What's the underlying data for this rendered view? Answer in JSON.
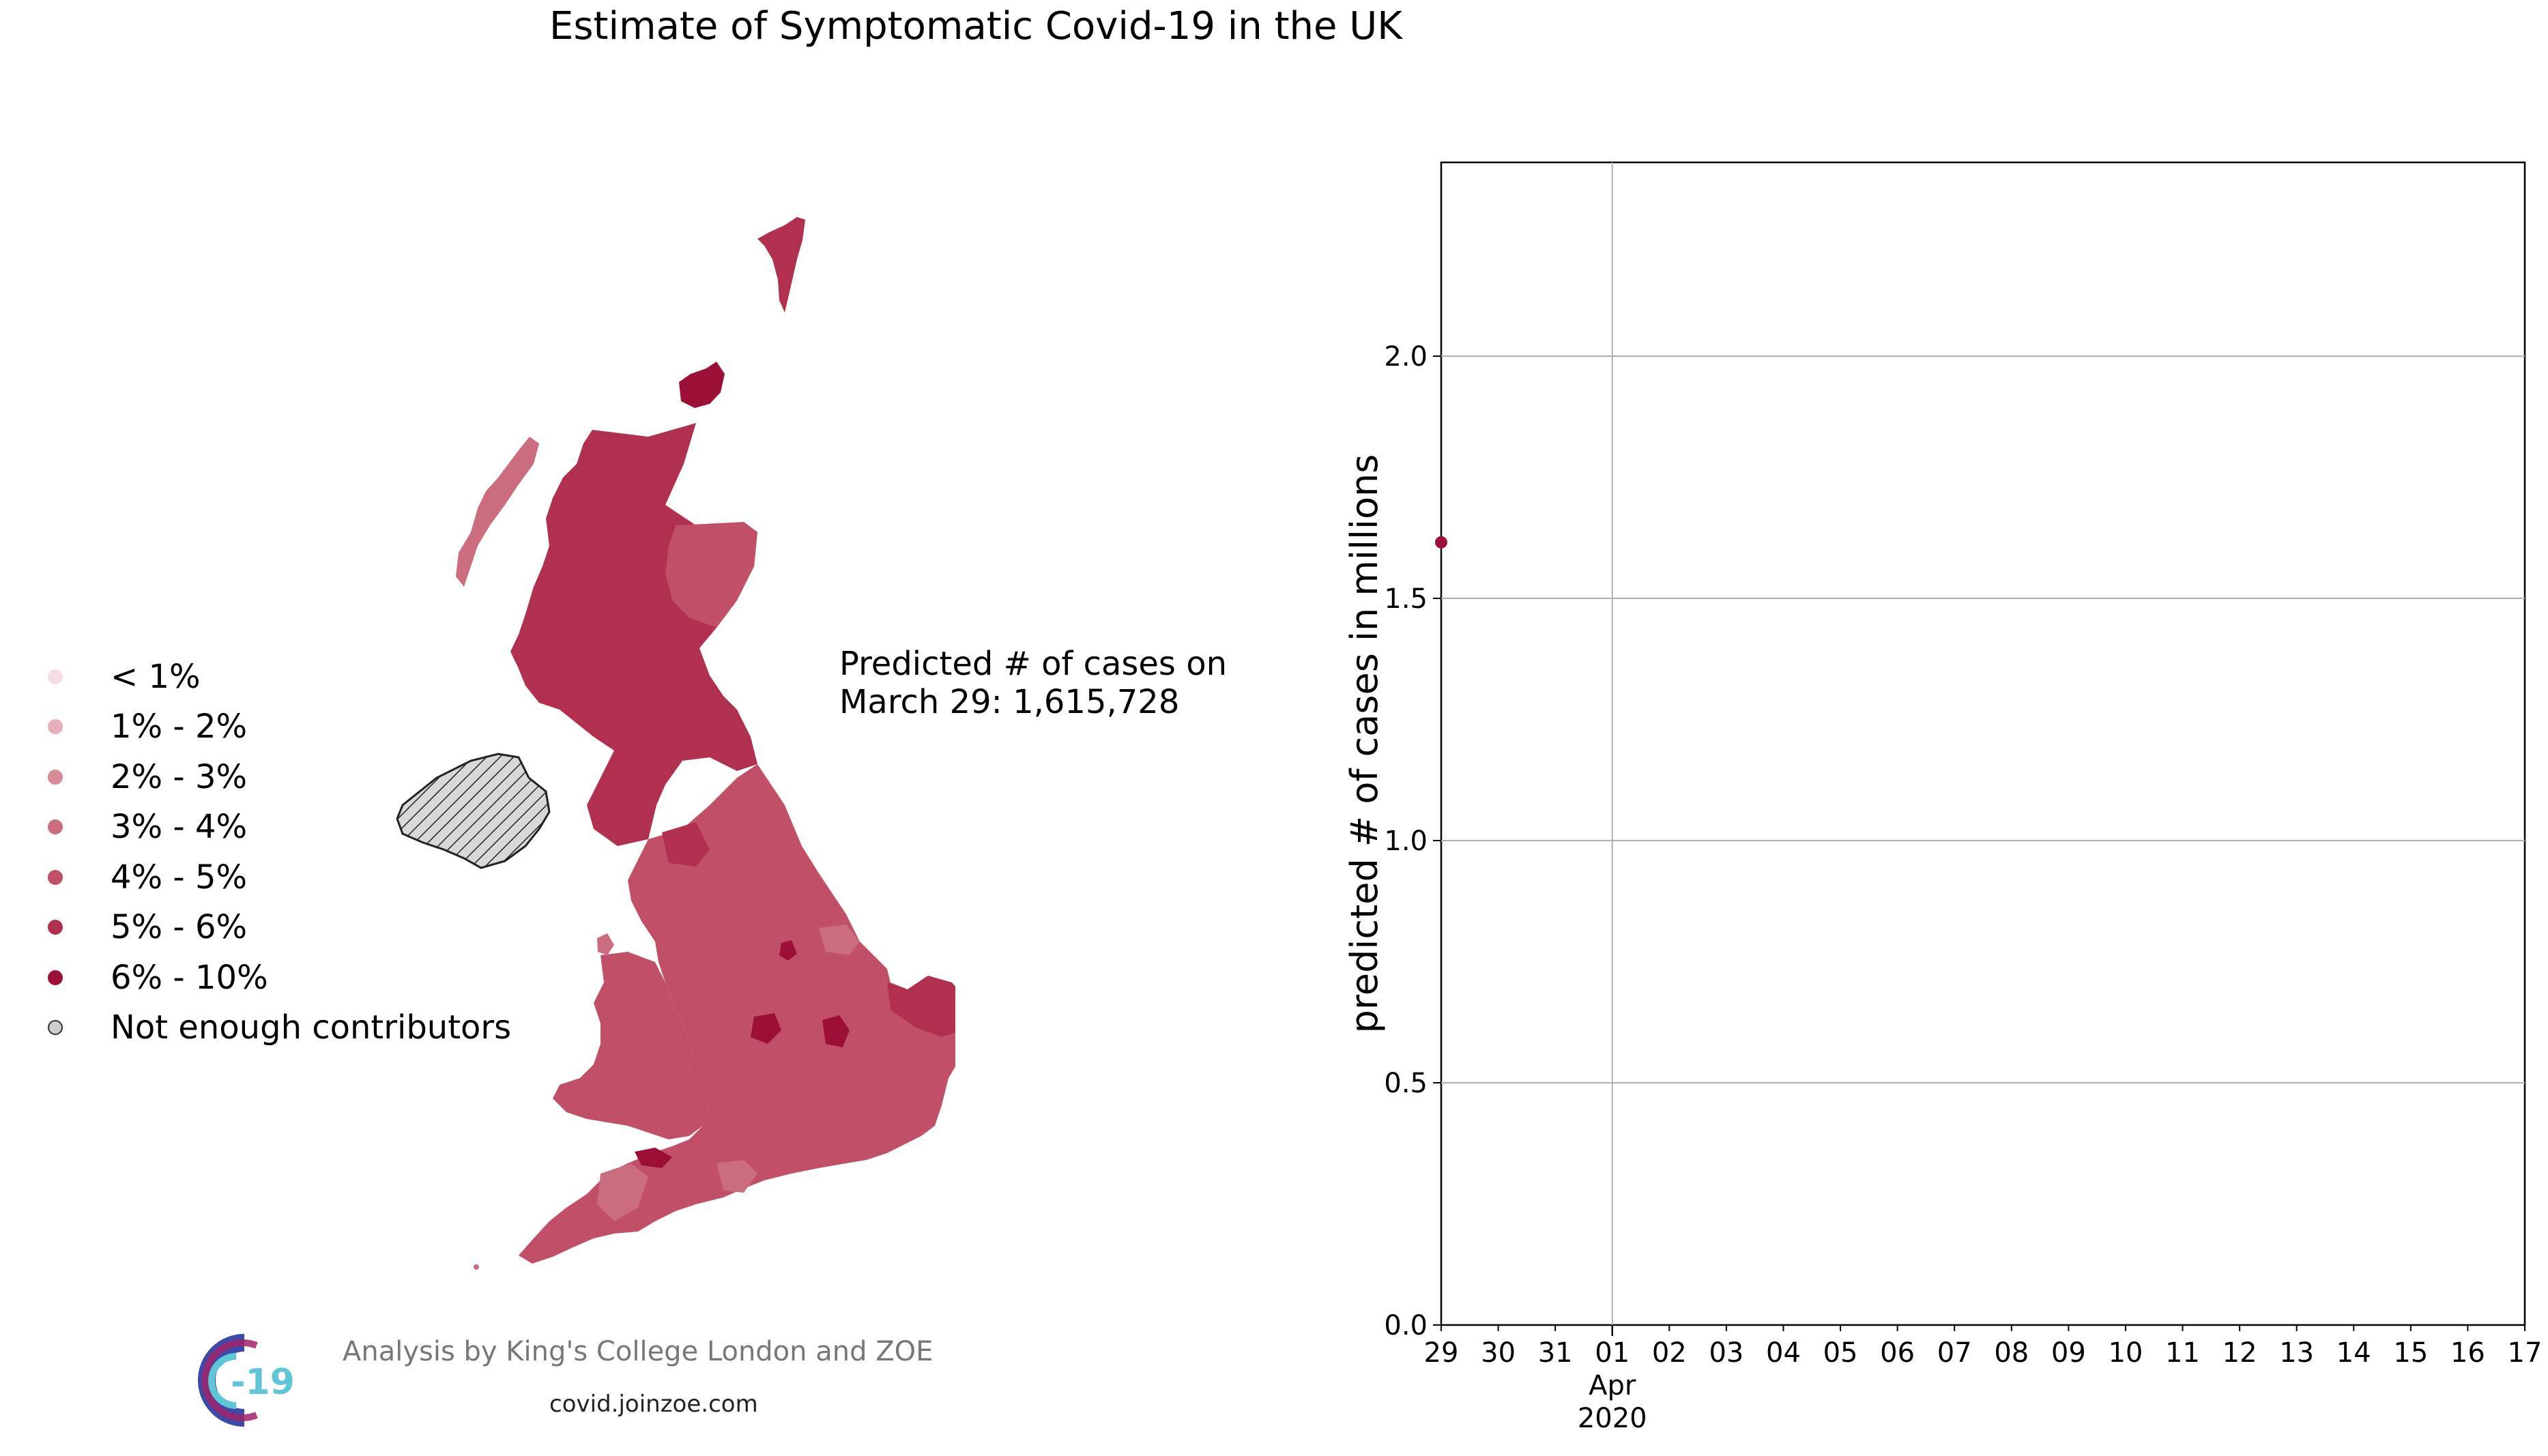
{
  "title": "Estimate of Symptomatic Covid-19 in the UK",
  "legend": [
    {
      "label": "< 1%",
      "color": "#f6dde2"
    },
    {
      "label": "1% - 2%",
      "color": "#e6b0bb"
    },
    {
      "label": "2% - 3%",
      "color": "#d88a99"
    },
    {
      "label": "3% - 4%",
      "color": "#cb6c7f"
    },
    {
      "label": "4% - 5%",
      "color": "#c04f67"
    },
    {
      "label": "5% - 6%",
      "color": "#b2304f"
    },
    {
      "label": "6% - 10%",
      "color": "#9c0f36"
    },
    {
      "label": "Not enough contributors",
      "color": "#cccccc"
    }
  ],
  "predicted_text": {
    "line1": "Predicted # of cases on",
    "line2": "March 29: 1,615,728"
  },
  "footer": {
    "credit": "Analysis by King's College London and ZOE",
    "url": "covid.joinzoe.com",
    "logo_text": "-19"
  },
  "chart_data": {
    "type": "scatter",
    "x_tick_labels": [
      "29",
      "30",
      "31",
      "01",
      "02",
      "03",
      "04",
      "05",
      "06",
      "07",
      "08",
      "09",
      "10",
      "11",
      "12",
      "13",
      "14",
      "15",
      "16",
      "17"
    ],
    "x_major_label": "Apr",
    "x_year_label": "2020",
    "xlim": [
      "2020-03-29",
      "2020-04-17"
    ],
    "ylabel": "predicted # of cases in millions",
    "ylim": [
      0,
      2.4
    ],
    "y_ticks": [
      "0.0",
      "0.5",
      "1.0",
      "1.5",
      "2.0"
    ],
    "grid": true,
    "series": [
      {
        "x": [
          "2020-03-29"
        ],
        "y": [
          1.615728
        ],
        "color": "#9c0f36"
      }
    ]
  }
}
